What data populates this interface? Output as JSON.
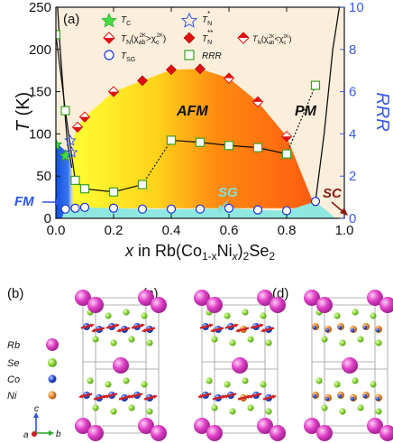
{
  "panel_labels": {
    "a": "(a)",
    "b": "(b)",
    "c": "(c)",
    "d": "(d)"
  },
  "chart_data": {
    "type": "scatter",
    "xlabel": {
      "pre": "x",
      "mid": " in Rb(Co",
      "sub1": "1-x",
      "mid2": "Ni",
      "sub2": "x",
      "post": ")",
      "sub3": "2",
      "tail": "Se",
      "sub4": "2"
    },
    "ylabel_left": {
      "main": "T",
      "unit": " (K)"
    },
    "ylabel_right": "RRR",
    "xlim": [
      0.0,
      1.0
    ],
    "ylim_left": [
      0,
      250
    ],
    "ylim_right": [
      0,
      10
    ],
    "xticks": [
      "0.0",
      "0.2",
      "0.4",
      "0.6",
      "0.8",
      "1.0"
    ],
    "yticks_left": [
      "0",
      "50",
      "100",
      "150",
      "200",
      "250"
    ],
    "yticks_right": [
      "0",
      "2",
      "4",
      "6",
      "8",
      "10"
    ],
    "region_labels": {
      "afm": "AFM",
      "pm": "PM",
      "fm": "FM",
      "sg": "SG",
      "sc": "SC"
    },
    "legend": {
      "tc": {
        "main": "T",
        "sub": "C"
      },
      "tn_star": {
        "main": "T",
        "sub": "N",
        "sup": "*"
      },
      "tn_red": {
        "main": "T",
        "sub": "N",
        "paren": "(χ",
        "sub2": "ab",
        "sup2": "2K",
        "mid": ">χ",
        "sub3": "c",
        "sup3": "2K",
        "close": ")"
      },
      "tn_starstar": {
        "main": "T",
        "sub": "N",
        "sup": "**"
      },
      "tn_red2": {
        "main": "T",
        "sub": "N",
        "paren": "(χ",
        "sub2": "ab",
        "sup2": "2K",
        "mid": "<χ",
        "sub3": "c",
        "sup3": "2K",
        "close": ")"
      },
      "tsg": {
        "main": "T",
        "sub": "SG"
      },
      "rrr": "RRR"
    },
    "series": {
      "tc": [
        [
          0.0,
          87
        ],
        [
          0.033,
          74
        ]
      ],
      "tn_star": [
        [
          0.05,
          92
        ],
        [
          0.055,
          78
        ]
      ],
      "tn_red_gt": [
        [
          0.075,
          108
        ],
        [
          0.1,
          120
        ],
        [
          0.2,
          150
        ],
        [
          0.8,
          97
        ]
      ],
      "tn_starstar": [
        [
          0.3,
          163
        ],
        [
          0.4,
          176
        ],
        [
          0.5,
          177
        ]
      ],
      "tn_red_lt": [
        [
          0.6,
          166
        ],
        [
          0.7,
          138
        ]
      ],
      "tsg": [
        [
          0.033,
          11
        ],
        [
          0.067,
          12
        ],
        [
          0.1,
          13
        ],
        [
          0.2,
          12
        ],
        [
          0.3,
          11
        ],
        [
          0.4,
          11
        ],
        [
          0.5,
          11
        ],
        [
          0.6,
          12
        ],
        [
          0.7,
          10
        ],
        [
          0.8,
          9
        ],
        [
          0.9,
          20
        ]
      ],
      "rrr": [
        [
          0.0,
          8.7
        ],
        [
          0.033,
          5.1
        ],
        [
          0.067,
          1.8
        ],
        [
          0.1,
          1.4
        ],
        [
          0.2,
          1.25
        ],
        [
          0.3,
          1.6
        ],
        [
          0.4,
          3.7
        ],
        [
          0.5,
          3.6
        ],
        [
          0.6,
          3.45
        ],
        [
          0.7,
          3.35
        ],
        [
          0.8,
          3.05
        ],
        [
          0.9,
          6.3
        ]
      ]
    }
  },
  "structures": {
    "legend": {
      "rb": "Rb",
      "se": "Se",
      "co": "Co",
      "ni": "Ni"
    },
    "axes": {
      "a": "a",
      "b": "b",
      "c": "c"
    },
    "colors": {
      "rb": "#e040c8",
      "se": "#8ed83a",
      "co": "#2b4fd8",
      "ni": "#e88a2a",
      "spin": "#d42020"
    }
  }
}
